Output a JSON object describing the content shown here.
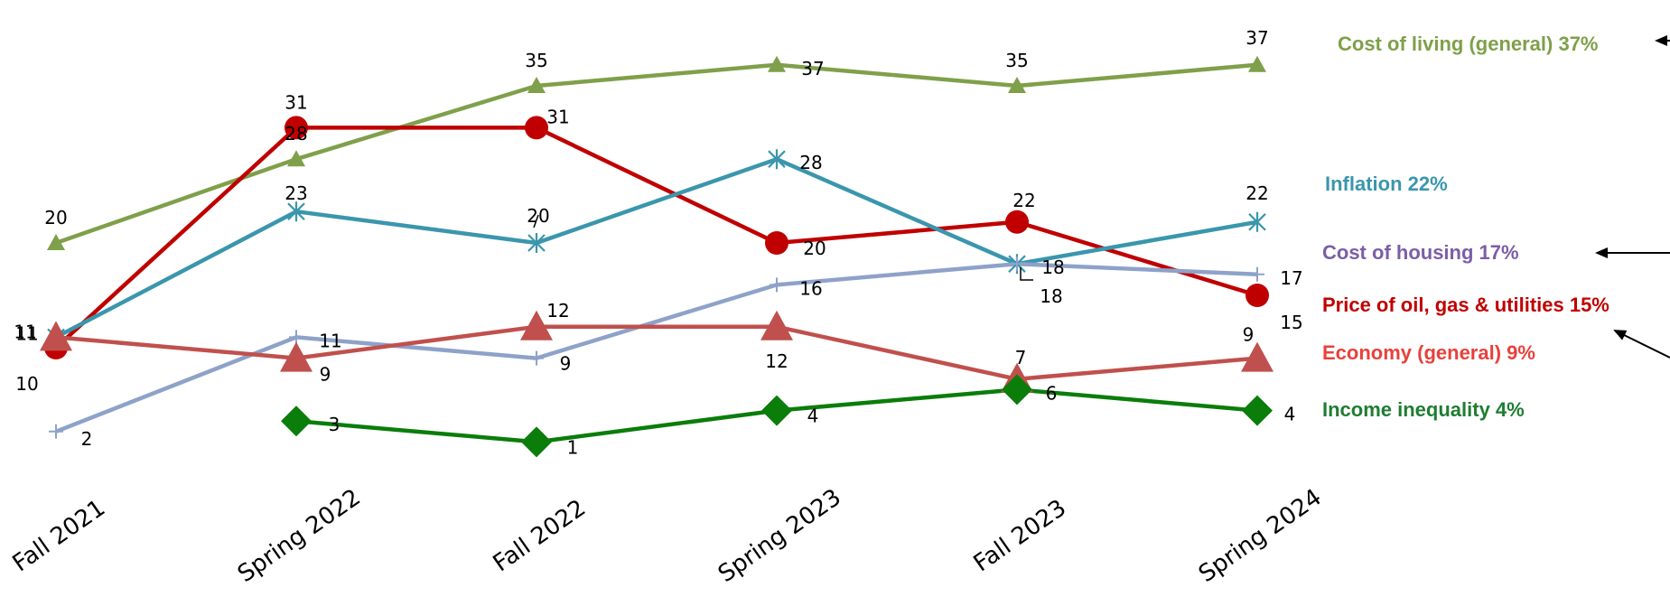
{
  "chart_data": {
    "type": "line",
    "categories": [
      "Fall 2021",
      "Spring 2022",
      "Fall 2022",
      "Spring 2023",
      "Fall 2023",
      "Spring 2024"
    ],
    "ylim": [
      0,
      40
    ],
    "grid": false,
    "legend_placement": "right",
    "series": [
      {
        "id": "cost_of_living",
        "name": "Cost of living (general)",
        "legend_label": "Cost of living (general) 37%",
        "color": "#7fa04a",
        "marker": "triangle",
        "values": [
          20,
          28,
          35,
          37,
          35,
          37
        ]
      },
      {
        "id": "price_oil",
        "name": "Price of oil, gas & utilities",
        "legend_label": "Price of oil, gas & utilities 15%",
        "color": "#c00000",
        "marker": "circle",
        "values": [
          10,
          31,
          31,
          20,
          22,
          15
        ]
      },
      {
        "id": "inflation",
        "name": "Inflation",
        "legend_label": "Inflation 22%",
        "color": "#3a96ad",
        "marker": "star",
        "values": [
          11,
          23,
          20,
          28,
          18,
          22
        ]
      },
      {
        "id": "cost_of_housing",
        "name": "Cost of housing",
        "legend_label": "Cost of housing 17%",
        "color": "#8ea2c9",
        "marker": "plus",
        "values": [
          2,
          11,
          9,
          16,
          18,
          17
        ]
      },
      {
        "id": "economy",
        "name": "Economy (general)",
        "legend_label": "Economy (general) 9%",
        "color": "#c0504d",
        "marker": "triangle-large",
        "values": [
          11,
          9,
          12,
          12,
          7,
          9
        ]
      },
      {
        "id": "income_inequality",
        "name": "Income inequality",
        "legend_label": "Income inequality 4%",
        "color": "#0a7d0a",
        "marker": "diamond",
        "values": [
          null,
          3,
          1,
          4,
          6,
          4
        ]
      }
    ],
    "legend_colors": {
      "cost_of_living": "#7fa04a",
      "inflation": "#3a96ad",
      "cost_of_housing": "#7b5ea7",
      "price_oil": "#c00000",
      "economy": "#e8413c",
      "income_inequality": "#1e7d32"
    }
  }
}
